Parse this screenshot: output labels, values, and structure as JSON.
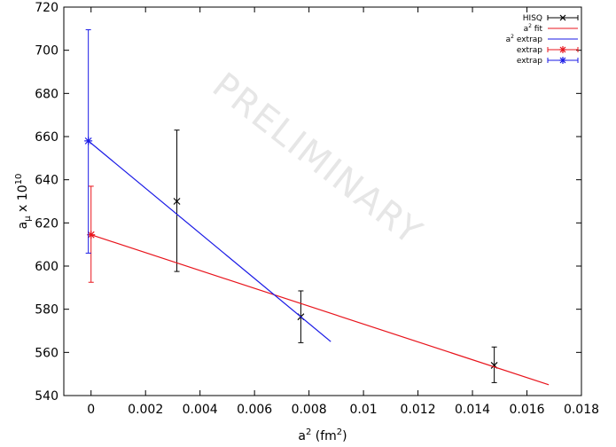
{
  "chart_data": {
    "type": "scatter",
    "xlabel": "a",
    "xlabel_sup": "2",
    "xlabel_unit_pre": " (fm",
    "xlabel_unit_sup": "2",
    "xlabel_unit_post": ")",
    "ylabel_base": "a",
    "ylabel_sub": "μ",
    "ylabel_mid": " x 10",
    "ylabel_sup": "10",
    "watermark": "PRELIMINARY",
    "xlim": [
      -0.001,
      0.018
    ],
    "ylim": [
      540,
      720
    ],
    "xticks": [
      {
        "v": 0,
        "label": "0"
      },
      {
        "v": 0.002,
        "label": "0.002"
      },
      {
        "v": 0.004,
        "label": "0.004"
      },
      {
        "v": 0.006,
        "label": "0.006"
      },
      {
        "v": 0.008,
        "label": "0.008"
      },
      {
        "v": 0.01,
        "label": "0.01"
      },
      {
        "v": 0.012,
        "label": "0.012"
      },
      {
        "v": 0.014,
        "label": "0.014"
      },
      {
        "v": 0.016,
        "label": "0.016"
      },
      {
        "v": 0.018,
        "label": "0.018"
      }
    ],
    "yticks": [
      {
        "v": 540,
        "label": "540"
      },
      {
        "v": 560,
        "label": "560"
      },
      {
        "v": 580,
        "label": "580"
      },
      {
        "v": 600,
        "label": "600"
      },
      {
        "v": 620,
        "label": "620"
      },
      {
        "v": 640,
        "label": "640"
      },
      {
        "v": 660,
        "label": "660"
      },
      {
        "v": 680,
        "label": "680"
      },
      {
        "v": 700,
        "label": "700"
      },
      {
        "v": 720,
        "label": "720"
      }
    ],
    "legend_position": "top-right",
    "series": [
      {
        "name": "HISQ",
        "kind": "points",
        "marker": "x",
        "color": "#000000",
        "points": [
          {
            "x": 0.00315,
            "y": 630,
            "ylo": 597.5,
            "yhi": 663
          },
          {
            "x": 0.0077,
            "y": 576.5,
            "ylo": 564.5,
            "yhi": 588.5
          },
          {
            "x": 0.0148,
            "y": 554,
            "ylo": 546,
            "yhi": 562.5
          }
        ]
      },
      {
        "name": "a",
        "name_sup": "2",
        "name_post": " fit",
        "kind": "line",
        "color": "#e8141c",
        "x": [
          0,
          0.0168
        ],
        "y": [
          614.5,
          545
        ]
      },
      {
        "name": "a",
        "name_sup": "2",
        "name_post": " extrap",
        "kind": "line",
        "color": "#1a1ae6",
        "x": [
          -0.0001,
          0.0088
        ],
        "y": [
          658,
          565
        ]
      },
      {
        "name": "extrap",
        "kind": "points",
        "marker": "star",
        "color": "#e8141c",
        "points": [
          {
            "x": 0,
            "y": 614.5,
            "ylo": 592.5,
            "yhi": 637
          }
        ]
      },
      {
        "name": "extrap",
        "kind": "points",
        "marker": "star",
        "color": "#1a1ae6",
        "points": [
          {
            "x": -0.0001,
            "y": 658,
            "ylo": 606,
            "yhi": 709.5
          }
        ]
      }
    ]
  }
}
